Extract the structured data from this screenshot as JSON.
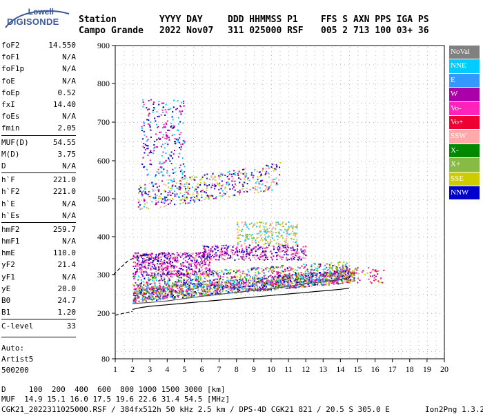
{
  "logo": {
    "brand": "Lowell",
    "product": "DIGISONDE"
  },
  "header": {
    "row1": [
      "Station",
      "YYYY DAY",
      "DDD HHMMSS P1",
      "FFS S AXN PPS IGA PS"
    ],
    "row2": [
      "Campo Grande",
      "2022 Nov07",
      "311 025000 RSF",
      "005 2 713 100 03+ 36"
    ]
  },
  "params": [
    {
      "label": "foF2",
      "value": "14.550"
    },
    {
      "label": "foF1",
      "value": "N/A"
    },
    {
      "label": "foF1p",
      "value": "N/A"
    },
    {
      "label": "foE",
      "value": "N/A"
    },
    {
      "label": "foEp",
      "value": "0.52"
    },
    {
      "label": "fxI",
      "value": "14.40"
    },
    {
      "label": "foEs",
      "value": "N/A"
    },
    {
      "label": "fmin",
      "value": "2.05"
    },
    {
      "label": "MUF(D)",
      "value": "54.55"
    },
    {
      "label": "M(D)",
      "value": "3.75"
    },
    {
      "label": "D",
      "value": "N/A"
    },
    {
      "label": "h`F",
      "value": "221.0"
    },
    {
      "label": "h`F2",
      "value": "221.0"
    },
    {
      "label": "h`E",
      "value": "N/A"
    },
    {
      "label": "h`Es",
      "value": "N/A"
    },
    {
      "label": "hmF2",
      "value": "259.7"
    },
    {
      "label": "hmF1",
      "value": "N/A"
    },
    {
      "label": "hmE",
      "value": "110.0"
    },
    {
      "label": "yF2",
      "value": "21.4"
    },
    {
      "label": "yF1",
      "value": "N/A"
    },
    {
      "label": "yE",
      "value": "20.0"
    },
    {
      "label": "B0",
      "value": "24.7"
    },
    {
      "label": "B1",
      "value": "1.20"
    },
    {
      "label": "C-level",
      "value": "33"
    }
  ],
  "footer_left": [
    "Auto:",
    "Artist5",
    "500200"
  ],
  "legend": [
    {
      "label": "NoVal",
      "color": "#808080"
    },
    {
      "label": "NNE",
      "color": "#00ccff"
    },
    {
      "label": "E",
      "color": "#3399ff"
    },
    {
      "label": "W",
      "color": "#aa00aa"
    },
    {
      "label": "Vo-",
      "color": "#ff22bb"
    },
    {
      "label": "Vo+",
      "color": "#ee0033"
    },
    {
      "label": "SSW",
      "color": "#ffaaaa"
    },
    {
      "label": "X-",
      "color": "#008800"
    },
    {
      "label": "X+",
      "color": "#88bb44"
    },
    {
      "label": "SSE",
      "color": "#cccc00"
    },
    {
      "label": "NNW",
      "color": "#0000cc"
    }
  ],
  "bottom": {
    "line1": "D     100  200  400  600  800 1000 1500 3000 [km]",
    "line2": "MUF  14.9 15.1 16.0 17.5 19.6 22.6 31.4 54.5 [MHz]",
    "line3": "CGK21_2022311025000.RSF / 384fx512h 50 kHz 2.5 km / DPS-4D CGK21 821 / 20.5 S 305.0 E",
    "line3_right": "Ion2Png 1.3.20"
  },
  "chart_data": {
    "type": "scatter",
    "title": "",
    "xlabel": "",
    "ylabel": "",
    "xlim": [
      1,
      20
    ],
    "ylim": [
      80,
      900
    ],
    "x_ticks": [
      1,
      2,
      3,
      4,
      5,
      6,
      7,
      8,
      9,
      10,
      11,
      12,
      13,
      14,
      15,
      16,
      17,
      18,
      19,
      20
    ],
    "y_ticks": [
      80,
      200,
      300,
      400,
      500,
      600,
      700,
      800,
      900
    ],
    "grid": true,
    "legend_position": "right",
    "series": [
      {
        "name": "trace-o",
        "color": "#000000",
        "x": [
          2.0,
          2.5,
          3.0,
          4.0,
          5.0,
          6.0,
          7.0,
          8.0,
          9.0,
          10.0,
          11.0,
          12.0,
          13.0,
          14.0,
          14.5
        ],
        "y": [
          210,
          215,
          218,
          222,
          226,
          230,
          234,
          238,
          242,
          246,
          250,
          254,
          258,
          262,
          265
        ]
      },
      {
        "name": "trace-x",
        "color": "#000000",
        "x": [
          0.9,
          1.3,
          1.7,
          2.1,
          2.5,
          3.0
        ],
        "y": [
          300,
          318,
          335,
          345,
          350,
          352
        ]
      },
      {
        "name": "trace-low",
        "color": "#000000",
        "x": [
          1.0,
          1.5,
          2.0
        ],
        "y": [
          195,
          200,
          205
        ]
      },
      {
        "name": "trace-mid",
        "color": "#555555",
        "x": [
          2.0,
          3.0,
          4.0,
          5.0,
          6.0,
          7.0,
          8.0,
          9.0,
          10.0,
          11.0,
          12.0,
          13.0,
          14.0,
          14.5
        ],
        "y": [
          225,
          228,
          232,
          238,
          244,
          249,
          254,
          259,
          264,
          270,
          276,
          282,
          288,
          293
        ]
      }
    ]
  }
}
